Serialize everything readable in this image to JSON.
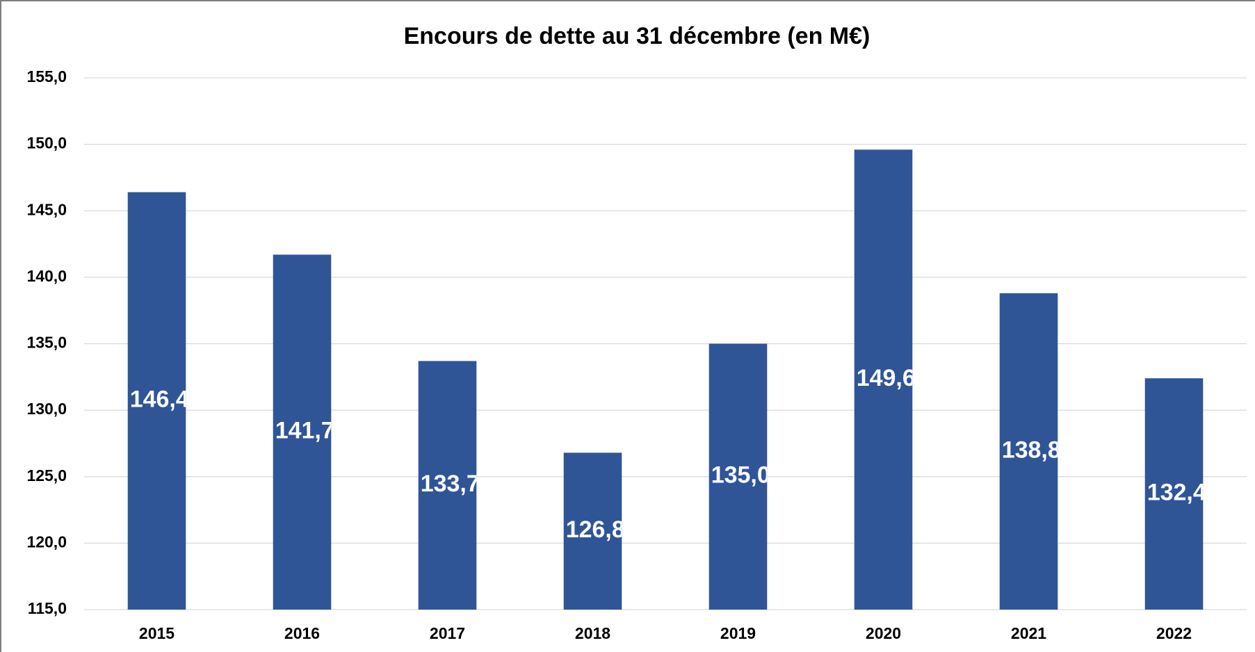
{
  "chart_data": {
    "type": "bar",
    "title": "Encours de dette au 31 décembre (en M€)",
    "categories": [
      "2015",
      "2016",
      "2017",
      "2018",
      "2019",
      "2020",
      "2021",
      "2022"
    ],
    "values": [
      146.4,
      141.7,
      133.7,
      126.8,
      135.0,
      149.6,
      138.8,
      132.4
    ],
    "value_labels": [
      "146,4",
      "141,7",
      "133,7",
      "126,8",
      "135,0",
      "149,6",
      "138,8",
      "132,4"
    ],
    "color": "#2f5597",
    "ylim": [
      115,
      155
    ],
    "yticks": [
      {
        "value": 115,
        "label": "115,0"
      },
      {
        "value": 120,
        "label": "120,0"
      },
      {
        "value": 125,
        "label": "125,0"
      },
      {
        "value": 130,
        "label": "130,0"
      },
      {
        "value": 135,
        "label": "135,0"
      },
      {
        "value": 140,
        "label": "140,0"
      },
      {
        "value": 145,
        "label": "145,0"
      },
      {
        "value": 150,
        "label": "150,0"
      },
      {
        "value": 155,
        "label": "155,0"
      }
    ],
    "grid": true
  }
}
